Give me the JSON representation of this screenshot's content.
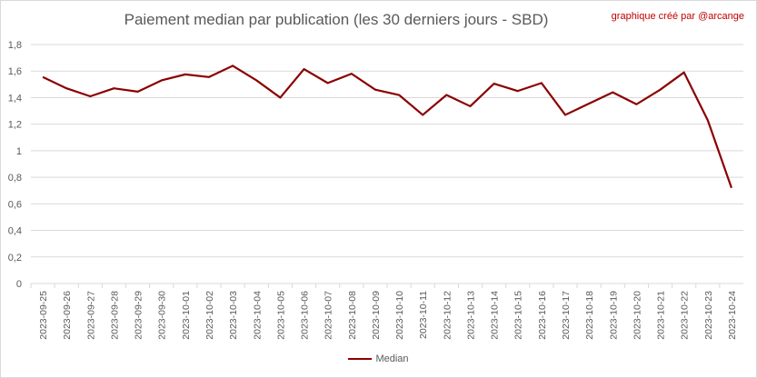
{
  "chart_data": {
    "type": "line",
    "title": "Paiement median par publication (les 30 derniers jours - SBD)",
    "annotation": "graphique créé par @arcange",
    "xlabel": "",
    "ylabel": "",
    "ylim": [
      0,
      1.8
    ],
    "yticks": [
      "0",
      "0,2",
      "0,4",
      "0,6",
      "0,8",
      "1",
      "1,2",
      "1,4",
      "1,6",
      "1,8"
    ],
    "grid": true,
    "legend_position": "bottom",
    "categories": [
      "2023-09-25",
      "2023-09-26",
      "2023-09-27",
      "2023-09-28",
      "2023-09-29",
      "2023-09-30",
      "2023-10-01",
      "2023-10-02",
      "2023-10-03",
      "2023-10-04",
      "2023-10-05",
      "2023-10-06",
      "2023-10-07",
      "2023-10-08",
      "2023-10-09",
      "2023-10-10",
      "2023-10-11",
      "2023-10-12",
      "2023-10-13",
      "2023-10-14",
      "2023-10-15",
      "2023-10-16",
      "2023-10-17",
      "2023-10-18",
      "2023-10-19",
      "2023-10-20",
      "2023-10-21",
      "2023-10-22",
      "2023-10-23",
      "2023-10-24"
    ],
    "series": [
      {
        "name": "Median",
        "color": "#8b0000",
        "values": [
          1.555,
          1.47,
          1.41,
          1.47,
          1.445,
          1.53,
          1.575,
          1.555,
          1.64,
          1.53,
          1.4,
          1.615,
          1.51,
          1.58,
          1.46,
          1.42,
          1.27,
          1.42,
          1.335,
          1.505,
          1.45,
          1.51,
          1.27,
          1.355,
          1.44,
          1.35,
          1.46,
          1.59,
          1.23,
          0.72
        ]
      }
    ]
  }
}
